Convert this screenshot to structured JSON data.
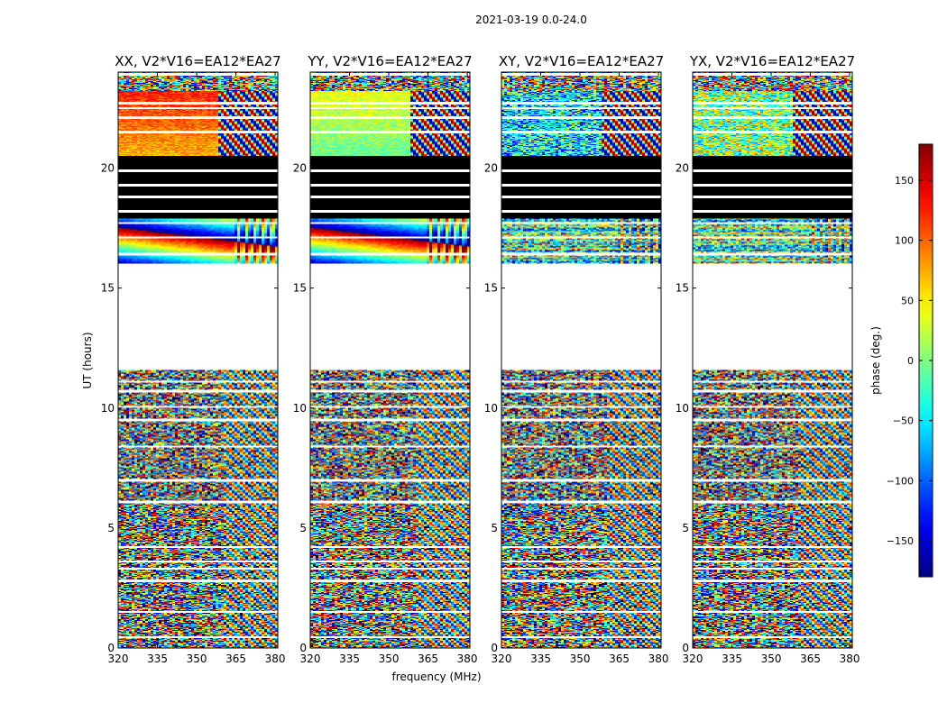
{
  "figure": {
    "suptitle": "2021-03-19 0.0-24.0",
    "xlabel": "frequency (MHz)",
    "ylabel": "UT (hours)"
  },
  "chart_data": {
    "type": "heatmap",
    "xlim": [
      320,
      381
    ],
    "ylim": [
      0,
      24
    ],
    "x_ticks": [
      320,
      335,
      350,
      365,
      380
    ],
    "y_ticks": [
      0,
      5,
      10,
      15,
      20
    ],
    "grid": false,
    "panels": [
      {
        "title": "XX, V2*V16=EA12*EA27",
        "mode": "parallel",
        "seed": 11
      },
      {
        "title": "YY, V2*V16=EA12*EA27",
        "mode": "parallel",
        "seed": 23
      },
      {
        "title": "XY, V2*V16=EA12*EA27",
        "mode": "cross",
        "seed": 37
      },
      {
        "title": "YX, V2*V16=EA12*EA27",
        "mode": "cross",
        "seed": 53
      }
    ],
    "time_segments": [
      {
        "start": 0.0,
        "end": 11.6,
        "content": "noisy phase",
        "gaps": [
          0.45,
          1.5,
          2.8,
          3.3,
          3.6,
          4.2,
          6.1,
          7.0,
          8.4,
          9.5,
          10.05,
          10.7,
          11.1
        ]
      },
      {
        "start": 11.6,
        "end": 15.7,
        "content": "no data"
      },
      {
        "start": 15.7,
        "end": 16.0,
        "content": "no data"
      },
      {
        "start": 16.0,
        "end": 17.9,
        "content": "phase gradient",
        "gaps": [
          16.4,
          17.1,
          17.7
        ]
      },
      {
        "start": 17.9,
        "end": 20.5,
        "content": "flagged (black)",
        "gaps": [
          18.2,
          18.8,
          19.3,
          19.9
        ]
      },
      {
        "start": 20.5,
        "end": 24.0,
        "content": "coherent phase",
        "gaps": [
          21.5,
          22.1,
          22.5,
          22.7,
          23.9
        ]
      }
    ],
    "colorbar": {
      "label": "phase (deg.)",
      "range": [
        -180,
        180
      ],
      "ticks": [
        -150,
        -100,
        -50,
        0,
        50,
        100,
        150
      ],
      "tick_labels": [
        "−150",
        "−100",
        "−50",
        "0",
        "50",
        "100",
        "150"
      ],
      "colormap": "jet"
    }
  }
}
